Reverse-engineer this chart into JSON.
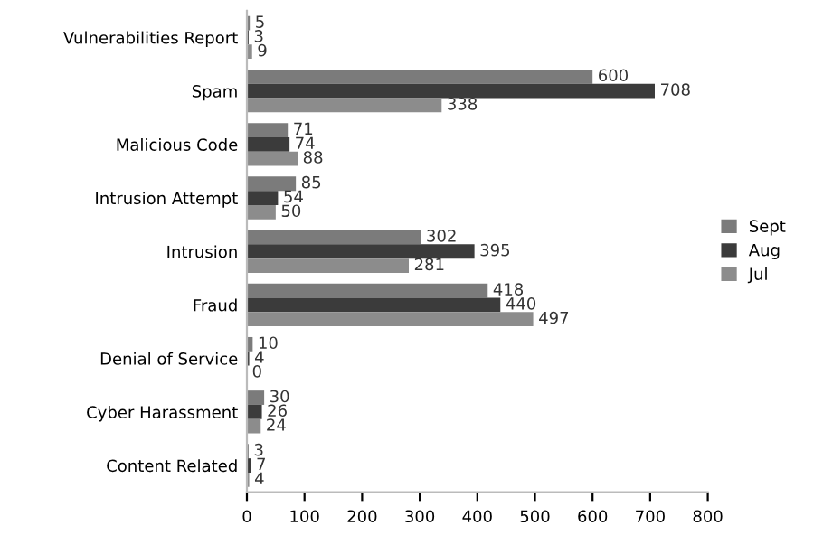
{
  "chart_data": {
    "type": "bar",
    "orientation": "horizontal",
    "categories": [
      "Vulnerabilities Report",
      "Spam",
      "Malicious Code",
      "Intrusion Attempt",
      "Intrusion",
      "Fraud",
      "Denial of Service",
      "Cyber Harassment",
      "Content Related"
    ],
    "series": [
      {
        "name": "Sept",
        "color": "#7b7b7b",
        "values": [
          5,
          600,
          71,
          85,
          302,
          418,
          10,
          30,
          3
        ]
      },
      {
        "name": "Aug",
        "color": "#3b3b3b",
        "values": [
          3,
          708,
          74,
          54,
          395,
          440,
          4,
          26,
          7
        ]
      },
      {
        "name": "Jul",
        "color": "#8c8c8c",
        "values": [
          9,
          338,
          88,
          50,
          281,
          497,
          0,
          24,
          4
        ]
      }
    ],
    "xlim": [
      0,
      800
    ],
    "xticks": [
      0,
      100,
      200,
      300,
      400,
      500,
      600,
      700,
      800
    ],
    "data_labels": true,
    "legend": "right",
    "grid": false
  }
}
